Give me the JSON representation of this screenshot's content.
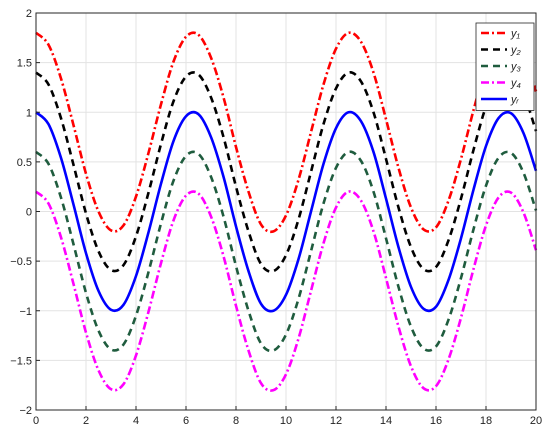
{
  "chart_data": {
    "type": "line",
    "title": "",
    "xlabel": "",
    "ylabel": "",
    "xlim": [
      0,
      20
    ],
    "ylim": [
      -2,
      2
    ],
    "grid": true,
    "legend_position": "top-right",
    "x_ticks": [
      0,
      2,
      4,
      6,
      8,
      10,
      12,
      14,
      16,
      18,
      20
    ],
    "x_tick_labels": [
      "0",
      "2",
      "4",
      "6",
      "8",
      "10",
      "12",
      "14",
      "16",
      "18",
      "20"
    ],
    "y_ticks": [
      -2,
      -1.5,
      -1,
      -0.5,
      0,
      0.5,
      1,
      1.5,
      2
    ],
    "y_tick_labels": [
      "−2",
      "−1.5",
      "−1",
      "−0.5",
      "0",
      "0.5",
      "1",
      "1.5",
      "2"
    ],
    "x": [
      0,
      0.5,
      1,
      1.5,
      2,
      2.5,
      3,
      3.5,
      4,
      4.5,
      5,
      5.5,
      6,
      6.5,
      7,
      7.5,
      8,
      8.5,
      9,
      9.5,
      10,
      10.5,
      11,
      11.5,
      12,
      12.5,
      13,
      13.5,
      14,
      14.5,
      15,
      15.5,
      16,
      16.5,
      17,
      17.5,
      18,
      18.5,
      19,
      19.5,
      20
    ],
    "series": [
      {
        "name": "y₁",
        "color": "#ff0000",
        "dash": "dash-dot",
        "values": [
          1.8,
          1.68,
          1.34,
          0.87,
          0.38,
          0.0,
          -0.19,
          -0.14,
          0.15,
          0.59,
          1.08,
          1.51,
          1.76,
          1.78,
          1.55,
          1.15,
          0.65,
          0.2,
          -0.13,
          -0.2,
          -0.04,
          0.32,
          0.8,
          1.28,
          1.64,
          1.8,
          1.71,
          1.4,
          0.93,
          0.44,
          0.04,
          -0.18,
          -0.16,
          0.11,
          0.53,
          1.02,
          1.46,
          1.74,
          1.79,
          1.59,
          1.21
        ]
      },
      {
        "name": "y₂",
        "color": "#000000",
        "dash": "dash",
        "values": [
          1.4,
          1.28,
          0.94,
          0.47,
          -0.02,
          -0.4,
          -0.59,
          -0.54,
          -0.25,
          0.19,
          0.68,
          1.11,
          1.36,
          1.38,
          1.15,
          0.75,
          0.25,
          -0.2,
          -0.53,
          -0.6,
          -0.44,
          -0.08,
          0.4,
          0.88,
          1.24,
          1.4,
          1.31,
          1.0,
          0.53,
          0.04,
          -0.36,
          -0.58,
          -0.56,
          -0.29,
          0.13,
          0.62,
          1.06,
          1.34,
          1.39,
          1.19,
          0.81
        ]
      },
      {
        "name": "y₃",
        "color": "#1f5c3e",
        "dash": "dash",
        "values": [
          0.6,
          0.48,
          0.14,
          -0.33,
          -0.82,
          -1.2,
          -1.39,
          -1.34,
          -1.05,
          -0.61,
          -0.12,
          0.31,
          0.56,
          0.58,
          0.35,
          -0.05,
          -0.55,
          -1.0,
          -1.33,
          -1.4,
          -1.24,
          -0.88,
          -0.4,
          0.08,
          0.44,
          0.6,
          0.51,
          0.2,
          -0.27,
          -0.76,
          -1.16,
          -1.38,
          -1.36,
          -1.09,
          -0.67,
          -0.18,
          0.26,
          0.54,
          0.59,
          0.39,
          0.01
        ]
      },
      {
        "name": "y₄",
        "color": "#ff00ff",
        "dash": "dash-dot",
        "values": [
          0.2,
          0.08,
          -0.26,
          -0.73,
          -1.22,
          -1.6,
          -1.79,
          -1.74,
          -1.45,
          -1.01,
          -0.52,
          -0.09,
          0.16,
          0.18,
          -0.05,
          -0.45,
          -0.95,
          -1.4,
          -1.73,
          -1.8,
          -1.64,
          -1.28,
          -0.8,
          -0.32,
          0.04,
          0.2,
          0.11,
          -0.2,
          -0.67,
          -1.16,
          -1.56,
          -1.78,
          -1.76,
          -1.49,
          -1.07,
          -0.58,
          -0.14,
          0.14,
          0.19,
          -0.01,
          -0.39
        ]
      },
      {
        "name": "yᵣ",
        "color": "#0000ff",
        "dash": "solid",
        "values": [
          1.0,
          0.88,
          0.54,
          0.07,
          -0.42,
          -0.8,
          -0.99,
          -0.94,
          -0.65,
          -0.21,
          0.28,
          0.71,
          0.96,
          0.98,
          0.75,
          0.35,
          -0.15,
          -0.6,
          -0.93,
          -1.0,
          -0.84,
          -0.48,
          0.0,
          0.48,
          0.84,
          1.0,
          0.91,
          0.6,
          0.13,
          -0.36,
          -0.76,
          -0.98,
          -0.96,
          -0.69,
          -0.27,
          0.22,
          0.66,
          0.94,
          0.99,
          0.79,
          0.41
        ]
      }
    ]
  }
}
